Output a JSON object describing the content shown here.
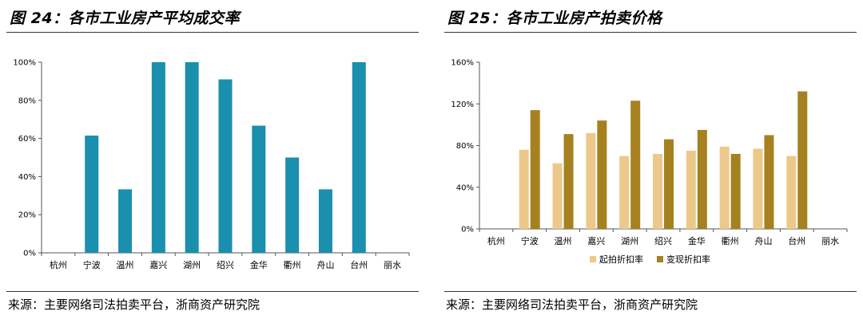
{
  "left": {
    "title": "图 24：各市工业房产平均成交率",
    "source": "来源：主要网络司法拍卖平台，浙商资产研究院"
  },
  "right": {
    "title": "图 25：各市工业房产拍卖价格",
    "source": "来源：主要网络司法拍卖平台，浙商资产研究院"
  },
  "chart_data": [
    {
      "type": "bar",
      "categories": [
        "杭州",
        "宁波",
        "温州",
        "嘉兴",
        "湖州",
        "绍兴",
        "金华",
        "衢州",
        "舟山",
        "台州",
        "丽水"
      ],
      "values": [
        null,
        61.5,
        33.3,
        100,
        100,
        91,
        66.7,
        50,
        33.3,
        100,
        null
      ],
      "ylim": [
        0,
        100
      ],
      "yticks": [
        "0%",
        "20%",
        "40%",
        "60%",
        "80%",
        "100%"
      ],
      "colors": {
        "bar": "#1a8fae"
      },
      "grid": false
    },
    {
      "type": "bar",
      "categories": [
        "杭州",
        "宁波",
        "温州",
        "嘉兴",
        "湖州",
        "绍兴",
        "金华",
        "衢州",
        "舟山",
        "台州",
        "丽水"
      ],
      "series": [
        {
          "name": "起拍折扣率",
          "values": [
            null,
            76,
            63,
            92,
            70,
            72,
            75,
            79,
            77,
            70,
            null
          ],
          "color": "#ecc98a"
        },
        {
          "name": "变现折扣率",
          "values": [
            null,
            114,
            91,
            104,
            123,
            86,
            95,
            72,
            90,
            132,
            null
          ],
          "color": "#a5811f"
        }
      ],
      "ylim": [
        0,
        160
      ],
      "yticks": [
        "0%",
        "40%",
        "80%",
        "120%",
        "160%"
      ],
      "legend": "bottom",
      "grid": false
    }
  ]
}
